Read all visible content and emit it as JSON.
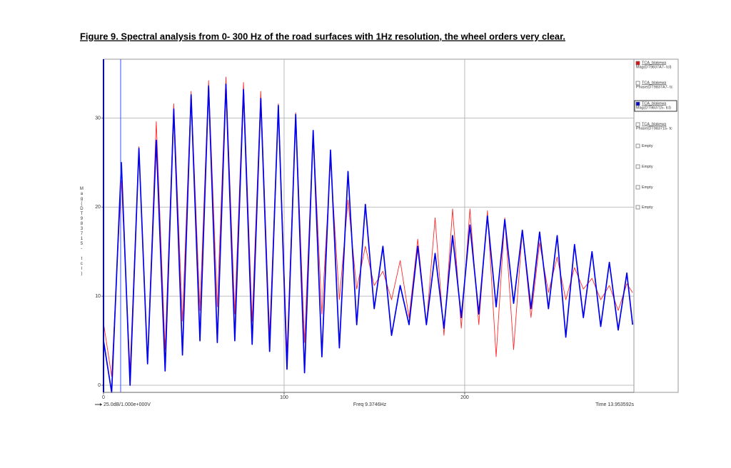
{
  "chart_data": {
    "type": "line",
    "title": "Figure 9. Spectral analysis from 0- 300 Hz of the road surfaces with 1Hz resolution, the wheel orders very clear.",
    "ylabel": "Mag(DT983715- tcl)",
    "scale_label": "25.0dB/1.000e+000V",
    "cursor_label": "Freq 9.3746Hz",
    "time_label": "Time 13.953592s",
    "xlim": [
      0,
      293.7
    ],
    "ylim": [
      -0.8,
      36.6
    ],
    "xticks": [
      0,
      100,
      200
    ],
    "yticks": [
      0,
      10,
      20,
      30
    ],
    "grid": true,
    "x": [
      0,
      4.5,
      9.9,
      14.7,
      19.6,
      24.4,
      29.2,
      34.1,
      38.9,
      43.7,
      48.5,
      53.4,
      58.2,
      63.0,
      67.8,
      72.7,
      77.5,
      82.3,
      87.1,
      92.0,
      96.8,
      101.6,
      106.4,
      111.3,
      116.1,
      120.9,
      125.7,
      130.6,
      135.4,
      140.2,
      145.0,
      149.9,
      154.7,
      159.5,
      164.3,
      169.2,
      174.0,
      178.8,
      183.6,
      188.5,
      193.3,
      198.1,
      202.9,
      207.8,
      212.6,
      217.4,
      222.2,
      227.1,
      231.9,
      236.7,
      241.5,
      246.4,
      251.2,
      256.0,
      260.8,
      265.7,
      270.5,
      275.3,
      280.1,
      285.0,
      289.8,
      293
    ],
    "series": [
      {
        "color": "#ff2a2a",
        "width": 0.9,
        "values": [
          7,
          1,
          23,
          1.6,
          26.8,
          2.8,
          29.6,
          4,
          31.6,
          7.2,
          33,
          8.4,
          34.2,
          8.8,
          34.6,
          8,
          34,
          7.2,
          33,
          5.6,
          31.6,
          3.6,
          30.6,
          4.8,
          28.6,
          8,
          25.2,
          9.6,
          20.8,
          10.8,
          15.6,
          11.2,
          12.8,
          9.6,
          14,
          7.6,
          16.4,
          6.8,
          18.8,
          5.6,
          19.8,
          6.4,
          19.8,
          6.8,
          19.6,
          3.2,
          18.8,
          4,
          17.4,
          7.6,
          16,
          10.4,
          14.4,
          9.6,
          13.2,
          10.8,
          12,
          9.6,
          11.2,
          8.4,
          11.4,
          10.4
        ]
      },
      {
        "color": "#0000ee",
        "width": 1.7,
        "values": [
          5,
          -0.8,
          25,
          0,
          26.6,
          2.4,
          27.5,
          1.6,
          31,
          3.4,
          32.6,
          5,
          33.6,
          4.8,
          33.8,
          5,
          33.2,
          4.6,
          32.2,
          3.8,
          31.4,
          1.8,
          30.4,
          1.4,
          28.6,
          3.2,
          26.4,
          4.2,
          24,
          6.8,
          20.3,
          8.6,
          15.6,
          5.6,
          11.2,
          6.8,
          15.6,
          6.8,
          14.8,
          6.4,
          16.8,
          7.6,
          18,
          8,
          19,
          8.8,
          18.6,
          9.2,
          17.4,
          8.6,
          17.2,
          8.6,
          16.8,
          5.4,
          15.8,
          7.6,
          15,
          6.6,
          13.8,
          6.2,
          12.6,
          6.8
        ]
      }
    ],
    "legend": [
      {
        "source": "TCA_blakewa",
        "name": "Mag(DT9837A7- tcl)",
        "color": "#e01010",
        "checked": true
      },
      {
        "source": "TCA_blakewa",
        "name": "Phase(DT9837A7- tc",
        "color": "#3a9fa0",
        "checked": false
      },
      {
        "source": "TCA_blakewa",
        "name": "Mag(DT983715- tcl)",
        "color": "#0000cc",
        "checked": true,
        "selected": true
      },
      {
        "source": "TCA_blakewa",
        "name": "Phase(DT983715- tc",
        "color": "#b09030",
        "checked": false
      },
      {
        "name": "Empty",
        "checked": false
      },
      {
        "name": "Empty",
        "checked": false
      },
      {
        "name": "Empty",
        "checked": false
      },
      {
        "name": "Empty",
        "checked": false
      }
    ]
  }
}
